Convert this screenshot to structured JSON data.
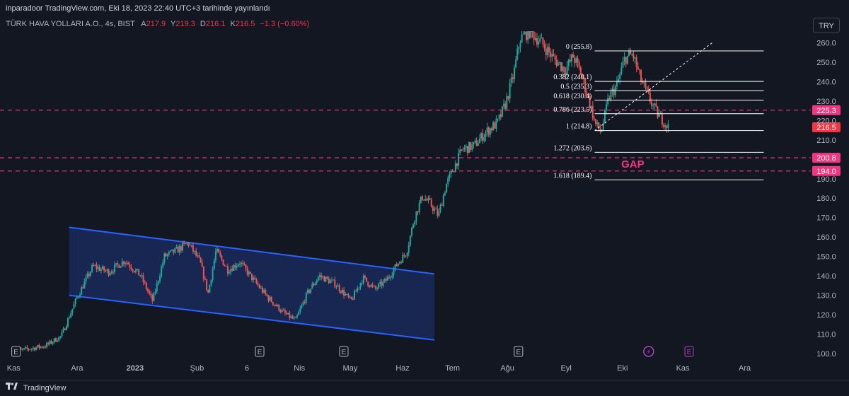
{
  "header": {
    "published": "inparadoor TradingView.com, Eki 18, 2023 22:40 UTC+3 tarihinde yayınlandı"
  },
  "legend": {
    "symbol": "TÜRK HAVA YOLLARI A.O., 4s, BIST",
    "open_label": "A",
    "open": "217.9",
    "high_label": "Y",
    "high": "219.3",
    "low_label": "D",
    "low": "216.1",
    "close_label": "K",
    "close": "216.5",
    "change": "−1.3 (−0.60%)"
  },
  "currency_button": "TRY",
  "footer": {
    "brand": "TradingView"
  },
  "colors": {
    "background": "#131722",
    "up": "#26a69a",
    "down": "#ef5350",
    "channel": "#2962ff",
    "level": "#f23681",
    "fib": "#ffffff"
  },
  "chart_data": {
    "type": "candlestick",
    "y_axis": {
      "min": 96,
      "max": 266,
      "position": "right",
      "ticks": [
        100,
        110,
        120,
        130,
        140,
        150,
        160,
        170,
        180,
        190,
        200,
        210,
        220,
        230,
        240,
        250,
        260
      ]
    },
    "x_axis": {
      "labels": [
        "Kas",
        "Ara",
        "2023",
        "Şub",
        "6",
        "Nis",
        "May",
        "Haz",
        "Tem",
        "Ağu",
        "Eyl",
        "Eki",
        "Kas",
        "Ara"
      ],
      "domain": [
        0,
        100
      ],
      "label_positions": [
        1,
        9,
        16.3,
        24.1,
        30.4,
        37,
        43.4,
        50,
        56.3,
        63.2,
        70.6,
        77.7,
        85.3,
        93.1
      ]
    },
    "price_path": [
      [
        1,
        101
      ],
      [
        5,
        104
      ],
      [
        7,
        109
      ],
      [
        9,
        129
      ],
      [
        11,
        145
      ],
      [
        13,
        142
      ],
      [
        15,
        148
      ],
      [
        17,
        140
      ],
      [
        18.5,
        127
      ],
      [
        20,
        150
      ],
      [
        21.5,
        153
      ],
      [
        23,
        157
      ],
      [
        24.5,
        147
      ],
      [
        25.5,
        131
      ],
      [
        26.5,
        153
      ],
      [
        28,
        143
      ],
      [
        29.5,
        147
      ],
      [
        31.2,
        138
      ],
      [
        33,
        129
      ],
      [
        35,
        121
      ],
      [
        36.5,
        117
      ],
      [
        38,
        131
      ],
      [
        39.5,
        140
      ],
      [
        41.5,
        136
      ],
      [
        43.5,
        127
      ],
      [
        45,
        139
      ],
      [
        46.5,
        133
      ],
      [
        48,
        138
      ],
      [
        49.5,
        147
      ],
      [
        50.5,
        152
      ],
      [
        51.5,
        170
      ],
      [
        52.5,
        181
      ],
      [
        53.5,
        177
      ],
      [
        54.5,
        171
      ],
      [
        55.5,
        187
      ],
      [
        56.5,
        196
      ],
      [
        57.5,
        205
      ],
      [
        59,
        207
      ],
      [
        60.5,
        214
      ],
      [
        62,
        219
      ],
      [
        63,
        229
      ],
      [
        64,
        244
      ],
      [
        64.8,
        262
      ],
      [
        66,
        266
      ],
      [
        67.5,
        260
      ],
      [
        69,
        252
      ],
      [
        70.5,
        246
      ],
      [
        71.5,
        253
      ],
      [
        72.5,
        244
      ],
      [
        73.5,
        230
      ],
      [
        74.3,
        218
      ],
      [
        75,
        214
      ],
      [
        76,
        232
      ],
      [
        77,
        238
      ],
      [
        78,
        252
      ],
      [
        79,
        254
      ],
      [
        80,
        241
      ],
      [
        81,
        232
      ],
      [
        82,
        224
      ],
      [
        83,
        219
      ],
      [
        83.5,
        216.5
      ]
    ],
    "last_price": 216.5,
    "channel": {
      "upper": [
        [
          8,
          165
        ],
        [
          54,
          141
        ]
      ],
      "lower": [
        [
          8,
          130
        ],
        [
          54,
          107
        ]
      ]
    },
    "horizontal_levels": [
      {
        "price": 225.3,
        "label": "225.3"
      },
      {
        "price": 200.8,
        "label": "200.8"
      },
      {
        "price": 194.0,
        "label": "194.0"
      }
    ],
    "fibonacci": {
      "levels": [
        {
          "ratio": "0",
          "price": 255.8,
          "label": "0 (255.8)"
        },
        {
          "ratio": "0.382",
          "price": 240.1,
          "label": "0.382 (240.1)"
        },
        {
          "ratio": "0.5",
          "price": 235.3,
          "label": "0.5 (235.3)"
        },
        {
          "ratio": "0.618",
          "price": 230.4,
          "label": "0.618 (230.4)"
        },
        {
          "ratio": "0.786",
          "price": 223.5,
          "label": "0.786 (223.5)"
        },
        {
          "ratio": "1",
          "price": 214.8,
          "label": "1 (214.8)"
        },
        {
          "ratio": "1.272",
          "price": 203.6,
          "label": "1.272 (203.6)"
        },
        {
          "ratio": "1.618",
          "price": 189.4,
          "label": "1.618 (189.4)"
        }
      ],
      "x_range": [
        74.2,
        95.5
      ],
      "trend_line": [
        [
          74.2,
          214.8
        ],
        [
          89,
          260
        ]
      ]
    },
    "annotations": [
      {
        "text": "GAP",
        "x": 79,
        "price": 198
      }
    ],
    "event_markers": [
      {
        "type": "earnings",
        "label": "E",
        "x": 1.3
      },
      {
        "type": "earnings",
        "label": "E",
        "x": 32
      },
      {
        "type": "earnings",
        "label": "E",
        "x": 42.6
      },
      {
        "type": "earnings",
        "label": "E",
        "x": 64.6
      },
      {
        "type": "dividend",
        "label": "⚡",
        "x": 81
      },
      {
        "type": "earnings-upcoming",
        "label": "E",
        "x": 86.1
      }
    ]
  }
}
